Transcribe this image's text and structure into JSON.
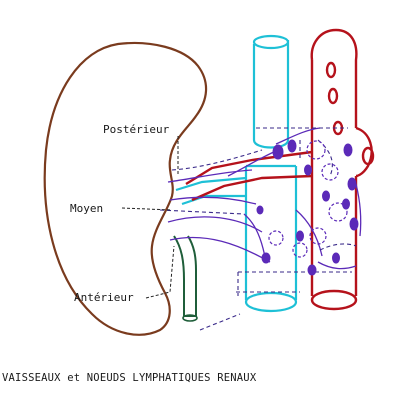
{
  "labels": {
    "posterior": "Postérieur",
    "middle": "Moyen",
    "anterior": "Antérieur"
  },
  "caption": "VAISSEAUX et NOEUDS LYMPHATIQUES RENAUX",
  "colors": {
    "kidney": "#7a3b1e",
    "artery": "#b5121b",
    "vein": "#1ec0d6",
    "ureter": "#1f5e3a",
    "lymph": "#5b2ab8",
    "lymph_node_fill": "#5b2ab8",
    "lead_line": "#222222"
  }
}
